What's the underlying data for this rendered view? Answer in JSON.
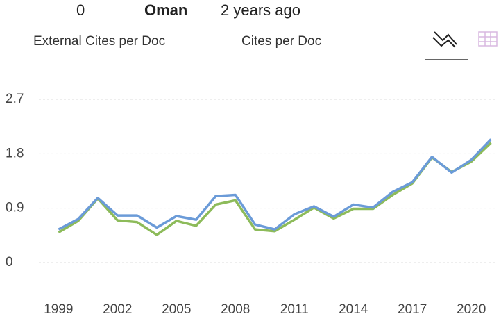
{
  "header": {
    "count": "0",
    "country": "Oman",
    "updated": "2 years ago"
  },
  "chart_data": {
    "type": "line",
    "x": [
      1999,
      2000,
      2001,
      2002,
      2003,
      2004,
      2005,
      2006,
      2007,
      2008,
      2009,
      2010,
      2011,
      2012,
      2013,
      2014,
      2015,
      2016,
      2017,
      2018,
      2019,
      2020,
      2021
    ],
    "series": [
      {
        "name": "External Cites per Doc",
        "color": "#8dbb5a",
        "values": [
          0.5,
          0.69,
          1.06,
          0.7,
          0.67,
          0.46,
          0.69,
          0.61,
          0.96,
          1.03,
          0.55,
          0.52,
          0.71,
          0.91,
          0.73,
          0.89,
          0.89,
          1.12,
          1.31,
          1.74,
          1.5,
          1.67,
          1.98
        ]
      },
      {
        "name": "Cites per Doc",
        "color": "#6b9bd8",
        "values": [
          0.55,
          0.72,
          1.07,
          0.78,
          0.78,
          0.58,
          0.77,
          0.71,
          1.1,
          1.12,
          0.63,
          0.55,
          0.8,
          0.93,
          0.76,
          0.96,
          0.91,
          1.17,
          1.33,
          1.75,
          1.49,
          1.7,
          2.04
        ]
      }
    ],
    "xlim": [
      1998,
      2021.3
    ],
    "xticks": [
      1999,
      2002,
      2005,
      2008,
      2011,
      2014,
      2017,
      2020
    ],
    "ylim": [
      0,
      2.7
    ],
    "yticks": [
      0,
      0.9,
      1.8,
      2.7
    ],
    "grid": true
  }
}
